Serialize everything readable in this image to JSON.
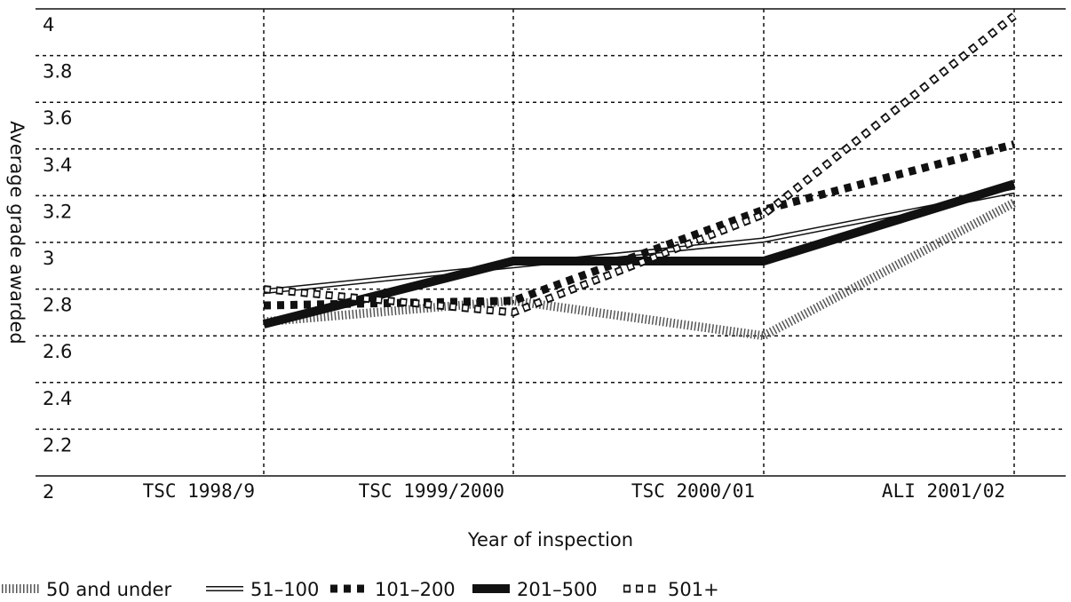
{
  "chart_data": {
    "type": "line",
    "y_label": "Average grade awarded",
    "x_label": "Year of inspection",
    "categories": [
      "TSC 1998/9",
      "TSC 1999/2000",
      "TSC 2000/01",
      "ALI 2001/02"
    ],
    "series": [
      {
        "name": "50 and under",
        "color": "#555555",
        "values": [
          2.66,
          2.75,
          2.6,
          3.17
        ]
      },
      {
        "name": "51–100",
        "color": "#111111",
        "values": [
          2.79,
          2.9,
          3.01,
          3.22
        ]
      },
      {
        "name": "101–200",
        "color": "#111111",
        "values": [
          2.73,
          2.75,
          3.14,
          3.42
        ]
      },
      {
        "name": "201–500",
        "color": "#111111",
        "values": [
          2.65,
          2.92,
          2.92,
          3.25
        ]
      },
      {
        "name": "501+",
        "color": "#111111",
        "values": [
          2.8,
          2.7,
          3.12,
          3.97
        ]
      }
    ],
    "ylim": [
      2,
      4
    ],
    "yticks": [
      2,
      2.2,
      2.4,
      2.6,
      2.8,
      3,
      3.2,
      3.4,
      3.6,
      3.8,
      4
    ],
    "grid": true
  }
}
